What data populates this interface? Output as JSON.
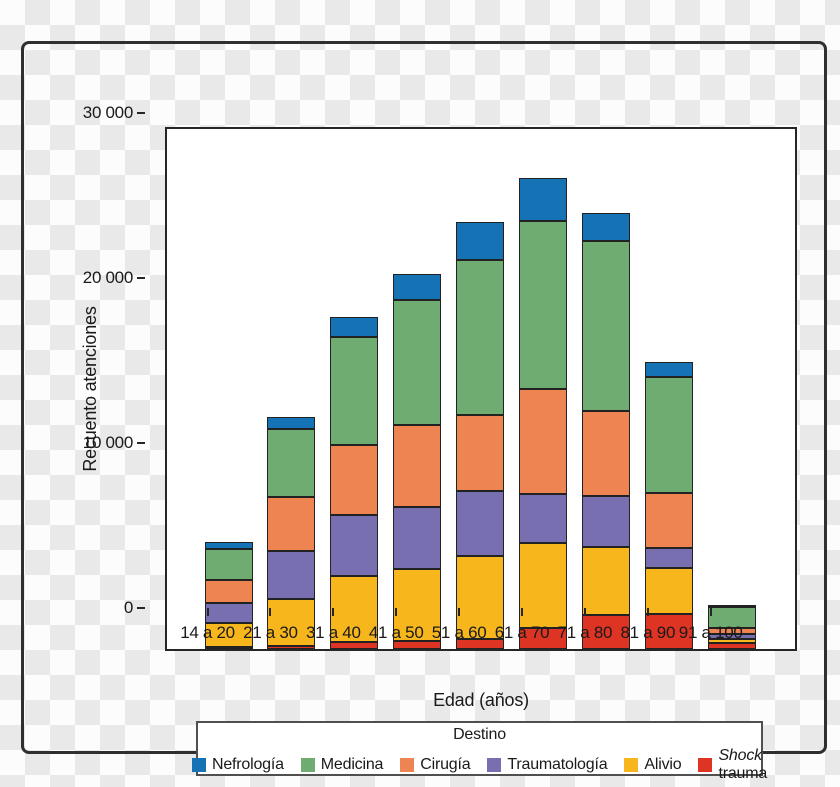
{
  "figure": {
    "background_style": "transparent-checkerboard",
    "frame_color": "#2f2f2f",
    "panel_color": "#ffffff"
  },
  "chart_data": {
    "type": "bar",
    "stacked": true,
    "title": "",
    "xlabel": "Edad (años)",
    "ylabel": "Recuento atenciones",
    "ylim": [
      0,
      31500
    ],
    "grid": false,
    "y_ticks": [
      {
        "value": 0,
        "label": "0"
      },
      {
        "value": 10000,
        "label": "10 000"
      },
      {
        "value": 20000,
        "label": "20 000"
      },
      {
        "value": 30000,
        "label": "30 000"
      }
    ],
    "categories": [
      "14 a 20",
      "21 a 30",
      "31 a 40",
      "41 a 50",
      "51 a 60",
      "61 a 70",
      "71 a 80",
      "81 a 90",
      "91 a 100"
    ],
    "legend": {
      "title": "Destino",
      "position": "bottom"
    },
    "series_note": "series listed in legend order; first series is the TOP segment of each stacked bar",
    "series": [
      {
        "name": "Nefrología",
        "italic_part": "",
        "plain_part": "Nefrología",
        "color": "#1472b5",
        "values": [
          400,
          700,
          1200,
          1600,
          2300,
          2600,
          1700,
          900,
          50
        ]
      },
      {
        "name": "Medicina",
        "italic_part": "",
        "plain_part": "Medicina",
        "color": "#6fac71",
        "values": [
          1900,
          4150,
          6550,
          7600,
          9400,
          10200,
          10300,
          7050,
          1250
        ]
      },
      {
        "name": "Cirugía",
        "italic_part": "",
        "plain_part": "Cirugía",
        "color": "#ee8452",
        "values": [
          1400,
          3250,
          4250,
          4950,
          4550,
          6350,
          5150,
          3350,
          400
        ]
      },
      {
        "name": "Traumatología",
        "italic_part": "",
        "plain_part": "Traumatología",
        "color": "#776fb0",
        "values": [
          1200,
          2950,
          3650,
          3750,
          3950,
          2950,
          3050,
          1200,
          300
        ]
      },
      {
        "name": "Alivio",
        "italic_part": "",
        "plain_part": "Alivio",
        "color": "#f7b71c",
        "values": [
          1450,
          2800,
          4050,
          4350,
          5050,
          5150,
          4150,
          2750,
          250
        ]
      },
      {
        "name": "Shock trauma",
        "italic_part": "Shock",
        "plain_part": " trauma",
        "color": "#de3423",
        "values": [
          100,
          200,
          400,
          500,
          600,
          1300,
          2050,
          2150,
          350
        ]
      }
    ],
    "totals": [
      6450,
      14050,
      20100,
      22750,
      25850,
      28550,
      26400,
      17400,
      2600
    ]
  }
}
